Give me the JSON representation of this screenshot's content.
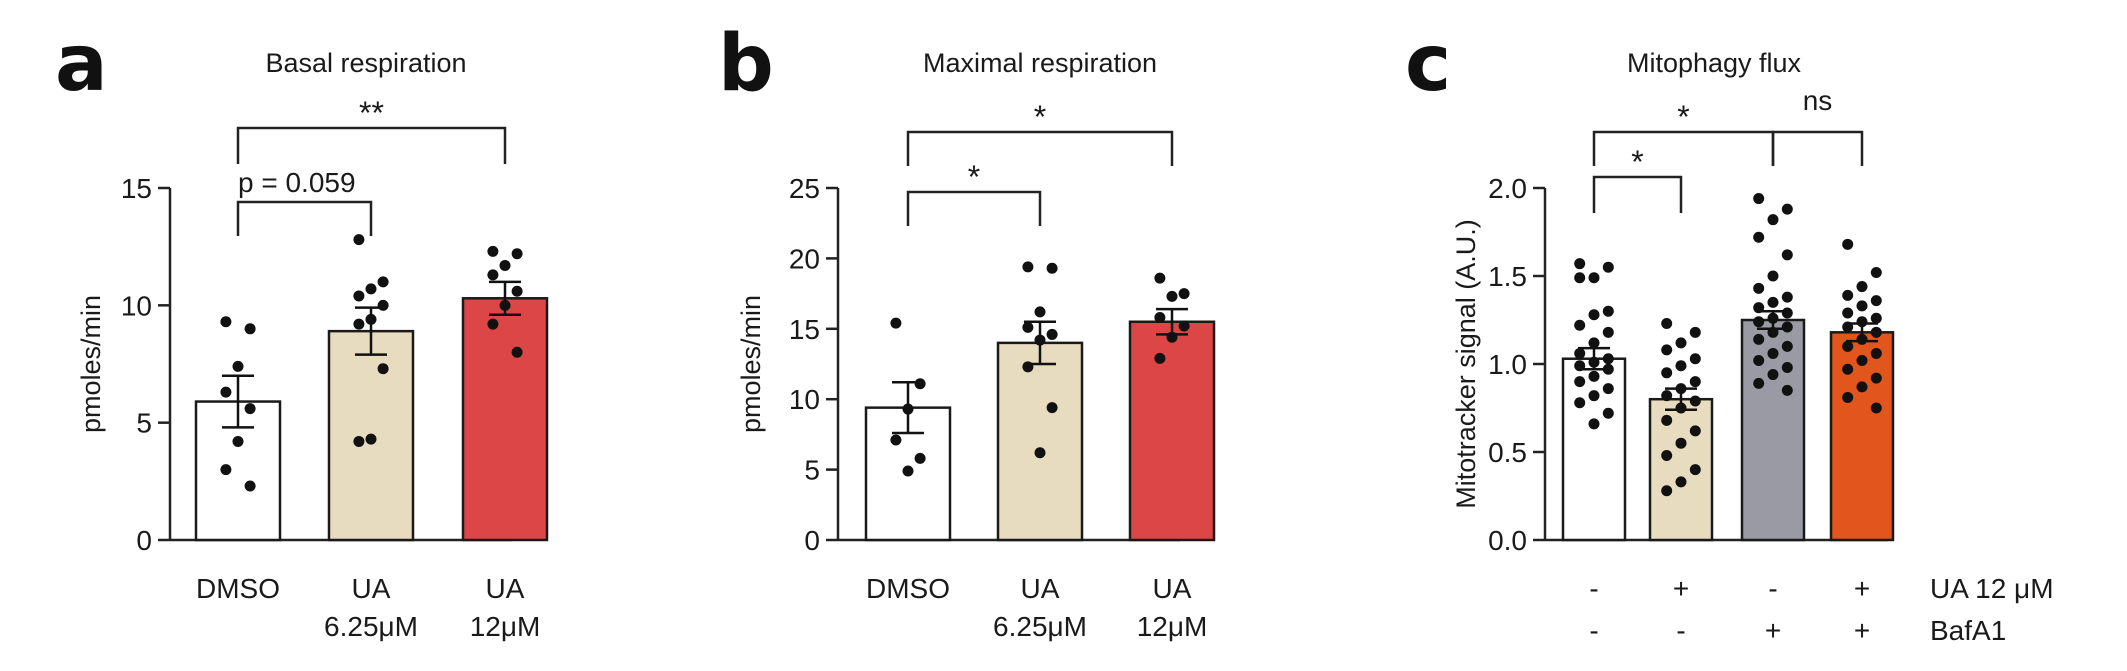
{
  "chart_data": [
    {
      "type": "bar",
      "panel_label": "a",
      "title": "Basal respiration",
      "ylabel": "pmoles/min",
      "xlabel": "",
      "ylim": [
        0,
        15
      ],
      "yticks": [
        "0",
        "5",
        "10",
        "15"
      ],
      "categories": [
        [
          "DMSO"
        ],
        [
          "UA",
          "6.25μM"
        ],
        [
          "UA",
          "12μM"
        ]
      ],
      "colors": [
        "#ffffff",
        "#e8dcc0",
        "#dc4646"
      ],
      "values": [
        5.9,
        8.9,
        10.3
      ],
      "sem": [
        1.1,
        1.0,
        0.7
      ],
      "points": [
        [
          9.3,
          9.0,
          7.4,
          6.3,
          5.6,
          4.2,
          3.0,
          2.3
        ],
        [
          12.8,
          11.0,
          10.7,
          10.4,
          10.0,
          9.4,
          9.2,
          7.3,
          4.3,
          4.2
        ],
        [
          12.3,
          12.2,
          11.7,
          11.3,
          10.6,
          10.0,
          9.2,
          8.0
        ]
      ],
      "annotations": [
        {
          "from": 0,
          "to": 1,
          "text": "p = 0.059"
        },
        {
          "from": 0,
          "to": 2,
          "text": "**"
        }
      ]
    },
    {
      "type": "bar",
      "panel_label": "b",
      "title": "Maximal respiration",
      "ylabel": "pmoles/min",
      "xlabel": "",
      "ylim": [
        0,
        25
      ],
      "yticks": [
        "0",
        "5",
        "10",
        "15",
        "20",
        "25"
      ],
      "categories": [
        [
          "DMSO"
        ],
        [
          "UA",
          "6.25μM"
        ],
        [
          "UA",
          "12μM"
        ]
      ],
      "colors": [
        "#ffffff",
        "#e8dcc0",
        "#dc4646"
      ],
      "values": [
        9.4,
        14.0,
        15.5
      ],
      "sem": [
        1.8,
        1.5,
        0.9
      ],
      "points": [
        [
          15.4,
          11.1,
          9.3,
          7.1,
          5.8,
          4.9
        ],
        [
          19.4,
          19.3,
          16.2,
          15.1,
          14.6,
          14.2,
          12.3,
          9.4,
          6.2
        ],
        [
          18.6,
          17.5,
          17.3,
          15.8,
          15.2,
          14.4,
          12.9
        ]
      ],
      "annotations": [
        {
          "from": 0,
          "to": 1,
          "text": "*"
        },
        {
          "from": 0,
          "to": 2,
          "text": "*"
        }
      ]
    },
    {
      "type": "bar",
      "panel_label": "c",
      "title": "Mitophagy flux",
      "ylabel": "Mitotracker signal (A.U.)",
      "xlabel": "",
      "ylim": [
        0,
        2.0
      ],
      "yticks": [
        "0.0",
        "0.5",
        "1.0",
        "1.5",
        "2.0"
      ],
      "categories": [
        [
          "-"
        ],
        [
          "+"
        ],
        [
          "-"
        ],
        [
          "+"
        ]
      ],
      "colors": [
        "#ffffff",
        "#e8dcc0",
        "#9a9aa4",
        "#e2561d"
      ],
      "values": [
        1.03,
        0.8,
        1.25,
        1.18
      ],
      "sem": [
        0.06,
        0.06,
        0.05,
        0.05
      ],
      "points": [
        [
          1.57,
          1.55,
          1.49,
          1.49,
          1.3,
          1.28,
          1.22,
          1.18,
          1.12,
          1.06,
          1.03,
          1.01,
          0.99,
          0.97,
          0.93,
          0.9,
          0.86,
          0.82,
          0.78,
          0.72,
          0.66
        ],
        [
          1.23,
          1.18,
          1.12,
          1.08,
          1.03,
          0.99,
          0.95,
          0.9,
          0.86,
          0.82,
          0.79,
          0.75,
          0.68,
          0.62,
          0.55,
          0.48,
          0.4,
          0.33,
          0.28
        ],
        [
          1.94,
          1.88,
          1.82,
          1.72,
          1.62,
          1.5,
          1.43,
          1.38,
          1.35,
          1.32,
          1.29,
          1.26,
          1.24,
          1.21,
          1.18,
          1.14,
          1.1,
          1.06,
          1.02,
          0.98,
          0.94,
          0.89,
          0.85
        ],
        [
          1.68,
          1.52,
          1.44,
          1.39,
          1.36,
          1.33,
          1.29,
          1.26,
          1.24,
          1.21,
          1.18,
          1.14,
          1.1,
          1.06,
          1.02,
          0.97,
          0.92,
          0.87,
          0.81,
          0.75
        ]
      ],
      "annotations": [
        {
          "from": 0,
          "to": 1,
          "text": "*"
        },
        {
          "from": 0,
          "to": 2,
          "text": "*"
        },
        {
          "from": 2,
          "to": 3,
          "text": "ns"
        }
      ],
      "condition_rows": [
        {
          "label": "UA 12 μM",
          "values": [
            "-",
            "+",
            "-",
            "+"
          ]
        },
        {
          "label": "BafA1",
          "values": [
            "-",
            "-",
            "+",
            "+"
          ]
        }
      ]
    }
  ]
}
